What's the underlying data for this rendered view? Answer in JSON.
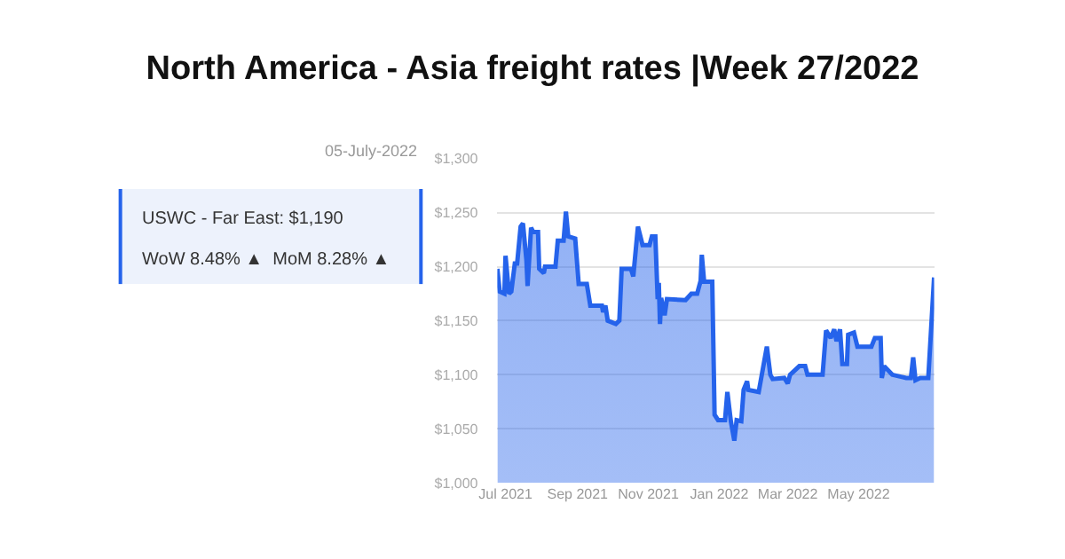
{
  "chart_data": {
    "type": "area",
    "title": "North America - Asia freight rates |Week 27/2022",
    "x": [
      "2021-06-24",
      "2021-06-26",
      "2021-06-30",
      "2021-07-01",
      "2021-07-04",
      "2021-07-06",
      "2021-07-09",
      "2021-07-11",
      "2021-07-14",
      "2021-07-16",
      "2021-07-19",
      "2021-07-20",
      "2021-07-23",
      "2021-07-25",
      "2021-07-29",
      "2021-07-30",
      "2021-08-03",
      "2021-08-04",
      "2021-08-13",
      "2021-08-15",
      "2021-08-20",
      "2021-08-22",
      "2021-08-24",
      "2021-08-30",
      "2021-09-02",
      "2021-09-09",
      "2021-09-12",
      "2021-09-22",
      "2021-09-23",
      "2021-09-25",
      "2021-09-27",
      "2021-10-04",
      "2021-10-07",
      "2021-10-09",
      "2021-10-17",
      "2021-10-19",
      "2021-10-23",
      "2021-10-27",
      "2021-11-02",
      "2021-11-04",
      "2021-11-07",
      "2021-11-09",
      "2021-11-10",
      "2021-11-11",
      "2021-11-12",
      "2021-11-15",
      "2021-11-17",
      "2021-12-03",
      "2021-12-08",
      "2021-12-13",
      "2021-12-16",
      "2021-12-17",
      "2021-12-19",
      "2021-12-26",
      "2021-12-28",
      "2021-12-31",
      "2022-01-06",
      "2022-01-08",
      "2022-01-11",
      "2022-01-14",
      "2022-01-16",
      "2022-01-20",
      "2022-01-22",
      "2022-01-25",
      "2022-01-26",
      "2022-02-04",
      "2022-02-11",
      "2022-02-14",
      "2022-02-16",
      "2022-02-26",
      "2022-03-01",
      "2022-03-03",
      "2022-03-11",
      "2022-03-16",
      "2022-03-18",
      "2022-03-31",
      "2022-04-03",
      "2022-04-07",
      "2022-04-10",
      "2022-04-12",
      "2022-04-15",
      "2022-04-17",
      "2022-04-21",
      "2022-04-22",
      "2022-04-27",
      "2022-04-30",
      "2022-05-12",
      "2022-05-15",
      "2022-05-20",
      "2022-05-21",
      "2022-05-23",
      "2022-05-30",
      "2022-06-11",
      "2022-06-15",
      "2022-06-17",
      "2022-06-19",
      "2022-06-23",
      "2022-06-30",
      "2022-07-05"
    ],
    "series": [
      {
        "color": "#2563eb",
        "values": [
          1198,
          1177,
          1175,
          1210,
          1175,
          1177,
          1203,
          1203,
          1237,
          1240,
          1206,
          1182,
          1236,
          1232,
          1232,
          1198,
          1194,
          1200,
          1200,
          1224,
          1224,
          1251,
          1228,
          1226,
          1184,
          1184,
          1164,
          1164,
          1158,
          1164,
          1150,
          1147,
          1150,
          1198,
          1198,
          1191,
          1237,
          1220,
          1220,
          1228,
          1228,
          1170,
          1185,
          1147,
          1171,
          1155,
          1170,
          1169,
          1175,
          1175,
          1187,
          1211,
          1186,
          1186,
          1063,
          1058,
          1058,
          1084,
          1057,
          1039,
          1058,
          1057,
          1086,
          1094,
          1086,
          1084,
          1126,
          1100,
          1096,
          1097,
          1092,
          1100,
          1108,
          1108,
          1100,
          1100,
          1141,
          1134,
          1142,
          1131,
          1142,
          1110,
          1110,
          1137,
          1139,
          1126,
          1126,
          1134,
          1134,
          1097,
          1108,
          1100,
          1097,
          1097,
          1116,
          1095,
          1097,
          1097,
          1190
        ]
      }
    ],
    "xlim": [
      "2021-06-24",
      "2022-07-05"
    ],
    "xticks": [
      {
        "value": "2021-07-01",
        "label": "Jul 2021"
      },
      {
        "value": "2021-09-01",
        "label": "Sep 2021"
      },
      {
        "value": "2021-11-01",
        "label": "Nov 2021"
      },
      {
        "value": "2022-01-01",
        "label": "Jan 2022"
      },
      {
        "value": "2022-03-01",
        "label": "Mar 2022"
      },
      {
        "value": "2022-05-01",
        "label": "May 2022"
      }
    ],
    "ylim": [
      1000,
      1300
    ],
    "yticks": [
      {
        "value": 1000,
        "label": "$1,000"
      },
      {
        "value": 1050,
        "label": "$1,050"
      },
      {
        "value": 1100,
        "label": "$1,100"
      },
      {
        "value": 1150,
        "label": "$1,150"
      },
      {
        "value": 1200,
        "label": "$1,200"
      },
      {
        "value": 1250,
        "label": "$1,250"
      },
      {
        "value": 1300,
        "label": "$1,300"
      }
    ],
    "grid": "y",
    "annotations": [
      "05-July-2022",
      "USWC - Far East: $1,190",
      "WoW 8.48% ▲  MoM 8.28% ▲"
    ]
  }
}
